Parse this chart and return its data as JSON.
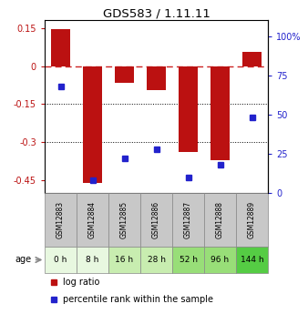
{
  "title": "GDS583 / 1.11.11",
  "samples": [
    "GSM12883",
    "GSM12884",
    "GSM12885",
    "GSM12886",
    "GSM12887",
    "GSM12888",
    "GSM12889"
  ],
  "ages": [
    "0 h",
    "8 h",
    "16 h",
    "28 h",
    "52 h",
    "96 h",
    "144 h"
  ],
  "log_ratios": [
    0.145,
    -0.46,
    -0.065,
    -0.095,
    -0.34,
    -0.37,
    0.055
  ],
  "percentile_ranks": [
    68,
    8,
    22,
    28,
    10,
    18,
    48
  ],
  "ylim_left": [
    -0.5,
    0.18
  ],
  "ylim_right": [
    0,
    110
  ],
  "yticks_left": [
    -0.45,
    -0.3,
    -0.15,
    0.0,
    0.15
  ],
  "ytick_labels_left": [
    "-0.45",
    "-0.3",
    "-0.15",
    "0",
    "0.15"
  ],
  "yticks_right": [
    0,
    25,
    50,
    75,
    100
  ],
  "ytick_labels_right": [
    "0",
    "25",
    "50",
    "75",
    "100%"
  ],
  "hline_y": 0.0,
  "dotted_lines": [
    -0.15,
    -0.3
  ],
  "bar_color": "#bb1111",
  "dot_color": "#2222cc",
  "age_colors": [
    "#e8f8e0",
    "#e8f8e0",
    "#c8edb0",
    "#c8edb0",
    "#98de78",
    "#98de78",
    "#55cc44"
  ],
  "gsm_bg": "#c8c8c8",
  "bar_width": 0.6,
  "background_color": "#ffffff",
  "legend_red_label": "log ratio",
  "legend_blue_label": "percentile rank within the sample"
}
